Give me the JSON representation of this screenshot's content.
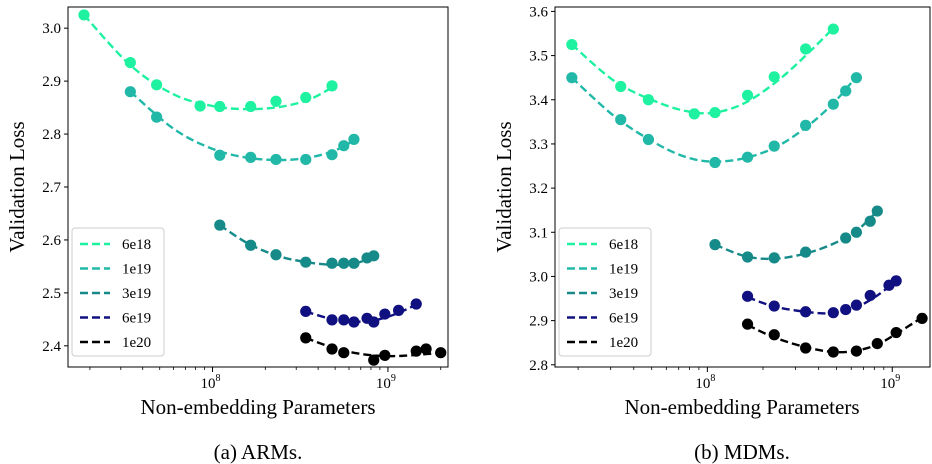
{
  "chart_data": [
    {
      "type": "scatter",
      "caption": "(a) ARMs.",
      "xlabel": "Non-embedding Parameters",
      "ylabel": "Validation Loss",
      "xscale": "log",
      "xlim": [
        15000000.0,
        2200000000.0
      ],
      "ylim": [
        2.36,
        3.04
      ],
      "yticks": [
        "2.4",
        "2.5",
        "2.6",
        "2.7",
        "2.8",
        "2.9",
        "3.0"
      ],
      "xticks": [
        {
          "base": "10",
          "exp": "8"
        },
        {
          "base": "10",
          "exp": "9"
        }
      ],
      "grid": false,
      "legend_position": "lower-left",
      "series": [
        {
          "name": "6e18",
          "color": "#1ef2a0",
          "points": [
            [
              18500000.0,
              3.025
            ],
            [
              34000000.0,
              2.935
            ],
            [
              48000000.0,
              2.893
            ],
            [
              85000000.0,
              2.853
            ],
            [
              110000000.0,
              2.852
            ],
            [
              165000000.0,
              2.852
            ],
            [
              230000000.0,
              2.862
            ],
            [
              340000000.0,
              2.869
            ],
            [
              480000000.0,
              2.891
            ]
          ],
          "fit": [
            [
              18500000.0,
              3.025
            ],
            [
              34000000.0,
              2.93
            ],
            [
              60000000.0,
              2.875
            ],
            [
              100000000.0,
              2.853
            ],
            [
              160000000.0,
              2.847
            ],
            [
              250000000.0,
              2.852
            ],
            [
              360000000.0,
              2.866
            ],
            [
              480000000.0,
              2.888
            ]
          ]
        },
        {
          "name": "1e19",
          "color": "#22b8a8",
          "points": [
            [
              34000000.0,
              2.88
            ],
            [
              48000000.0,
              2.832
            ],
            [
              110000000.0,
              2.76
            ],
            [
              165000000.0,
              2.756
            ],
            [
              230000000.0,
              2.752
            ],
            [
              340000000.0,
              2.752
            ],
            [
              480000000.0,
              2.761
            ],
            [
              560000000.0,
              2.778
            ],
            [
              640000000.0,
              2.79
            ]
          ],
          "fit": [
            [
              34000000.0,
              2.88
            ],
            [
              60000000.0,
              2.81
            ],
            [
              100000000.0,
              2.772
            ],
            [
              160000000.0,
              2.755
            ],
            [
              250000000.0,
              2.751
            ],
            [
              360000000.0,
              2.756
            ],
            [
              500000000.0,
              2.769
            ],
            [
              640000000.0,
              2.788
            ]
          ]
        },
        {
          "name": "3e19",
          "color": "#168a88",
          "points": [
            [
              110000000.0,
              2.628
            ],
            [
              165000000.0,
              2.59
            ],
            [
              230000000.0,
              2.572
            ],
            [
              340000000.0,
              2.558
            ],
            [
              480000000.0,
              2.556
            ],
            [
              560000000.0,
              2.556
            ],
            [
              640000000.0,
              2.556
            ],
            [
              760000000.0,
              2.566
            ],
            [
              830000000.0,
              2.57
            ]
          ],
          "fit": [
            [
              110000000.0,
              2.628
            ],
            [
              160000000.0,
              2.593
            ],
            [
              240000000.0,
              2.569
            ],
            [
              360000000.0,
              2.557
            ],
            [
              500000000.0,
              2.553
            ],
            [
              650000000.0,
              2.556
            ],
            [
              830000000.0,
              2.567
            ]
          ]
        },
        {
          "name": "6e19",
          "color": "#101080",
          "points": [
            [
              340000000.0,
              2.465
            ],
            [
              480000000.0,
              2.449
            ],
            [
              560000000.0,
              2.449
            ],
            [
              640000000.0,
              2.445
            ],
            [
              760000000.0,
              2.452
            ],
            [
              830000000.0,
              2.445
            ],
            [
              960000000.0,
              2.46
            ],
            [
              1150000000.0,
              2.467
            ],
            [
              1450000000.0,
              2.479
            ]
          ],
          "fit": [
            [
              340000000.0,
              2.465
            ],
            [
              460000000.0,
              2.452
            ],
            [
              620000000.0,
              2.446
            ],
            [
              800000000.0,
              2.447
            ],
            [
              1000000000.0,
              2.455
            ],
            [
              1200000000.0,
              2.465
            ],
            [
              1450000000.0,
              2.478
            ]
          ]
        },
        {
          "name": "1e20",
          "color": "#000000",
          "points": [
            [
              340000000.0,
              2.415
            ],
            [
              480000000.0,
              2.394
            ],
            [
              560000000.0,
              2.387
            ],
            [
              830000000.0,
              2.373
            ],
            [
              960000000.0,
              2.382
            ],
            [
              1450000000.0,
              2.39
            ],
            [
              1650000000.0,
              2.394
            ],
            [
              2000000000.0,
              2.387
            ]
          ],
          "fit": [
            [
              340000000.0,
              2.415
            ],
            [
              480000000.0,
              2.397
            ],
            [
              660000000.0,
              2.386
            ],
            [
              900000000.0,
              2.381
            ],
            [
              1200000000.0,
              2.381
            ],
            [
              1600000000.0,
              2.384
            ],
            [
              2000000000.0,
              2.387
            ]
          ]
        }
      ]
    },
    {
      "type": "scatter",
      "caption": "(b) MDMs.",
      "xlabel": "Non-embedding Parameters",
      "ylabel": "Validation Loss",
      "xscale": "log",
      "xlim": [
        15000000.0,
        1600000000.0
      ],
      "ylim": [
        2.795,
        3.61
      ],
      "yticks": [
        "2.8",
        "2.9",
        "3.0",
        "3.1",
        "3.2",
        "3.3",
        "3.4",
        "3.5",
        "3.6"
      ],
      "xticks": [
        {
          "base": "10",
          "exp": "8"
        },
        {
          "base": "10",
          "exp": "9"
        }
      ],
      "grid": false,
      "legend_position": "lower-left",
      "series": [
        {
          "name": "6e18",
          "color": "#1ef2a0",
          "points": [
            [
              18500000.0,
              3.525
            ],
            [
              34000000.0,
              3.43
            ],
            [
              48000000.0,
              3.4
            ],
            [
              85000000.0,
              3.368
            ],
            [
              110000000.0,
              3.371
            ],
            [
              165000000.0,
              3.41
            ],
            [
              230000000.0,
              3.452
            ],
            [
              340000000.0,
              3.515
            ],
            [
              480000000.0,
              3.56
            ]
          ],
          "fit": [
            [
              18500000.0,
              3.525
            ],
            [
              32000000.0,
              3.44
            ],
            [
              55000000.0,
              3.393
            ],
            [
              80000000.0,
              3.373
            ],
            [
              110000000.0,
              3.371
            ],
            [
              160000000.0,
              3.393
            ],
            [
              240000000.0,
              3.443
            ],
            [
              340000000.0,
              3.5
            ],
            [
              480000000.0,
              3.562
            ]
          ]
        },
        {
          "name": "1e19",
          "color": "#22b8a8",
          "points": [
            [
              18500000.0,
              3.45
            ],
            [
              34000000.0,
              3.355
            ],
            [
              48000000.0,
              3.31
            ],
            [
              110000000.0,
              3.258
            ],
            [
              165000000.0,
              3.27
            ],
            [
              230000000.0,
              3.295
            ],
            [
              340000000.0,
              3.342
            ],
            [
              480000000.0,
              3.39
            ],
            [
              560000000.0,
              3.42
            ],
            [
              640000000.0,
              3.45
            ]
          ],
          "fit": [
            [
              18500000.0,
              3.45
            ],
            [
              32000000.0,
              3.36
            ],
            [
              55000000.0,
              3.297
            ],
            [
              80000000.0,
              3.268
            ],
            [
              110000000.0,
              3.26
            ],
            [
              160000000.0,
              3.268
            ],
            [
              240000000.0,
              3.295
            ],
            [
              360000000.0,
              3.345
            ],
            [
              500000000.0,
              3.4
            ],
            [
              640000000.0,
              3.453
            ]
          ]
        },
        {
          "name": "3e19",
          "color": "#168a88",
          "points": [
            [
              110000000.0,
              3.072
            ],
            [
              165000000.0,
              3.044
            ],
            [
              230000000.0,
              3.042
            ],
            [
              340000000.0,
              3.055
            ],
            [
              560000000.0,
              3.087
            ],
            [
              640000000.0,
              3.1
            ],
            [
              760000000.0,
              3.125
            ],
            [
              830000000.0,
              3.148
            ]
          ],
          "fit": [
            [
              110000000.0,
              3.072
            ],
            [
              160000000.0,
              3.046
            ],
            [
              230000000.0,
              3.04
            ],
            [
              340000000.0,
              3.052
            ],
            [
              480000000.0,
              3.074
            ],
            [
              640000000.0,
              3.103
            ],
            [
              830000000.0,
              3.148
            ]
          ]
        },
        {
          "name": "6e19",
          "color": "#101080",
          "points": [
            [
              165000000.0,
              2.955
            ],
            [
              230000000.0,
              2.933
            ],
            [
              340000000.0,
              2.92
            ],
            [
              480000000.0,
              2.918
            ],
            [
              560000000.0,
              2.925
            ],
            [
              640000000.0,
              2.935
            ],
            [
              760000000.0,
              2.957
            ],
            [
              960000000.0,
              2.98
            ],
            [
              1050000000.0,
              2.99
            ]
          ],
          "fit": [
            [
              165000000.0,
              2.953
            ],
            [
              230000000.0,
              2.932
            ],
            [
              340000000.0,
              2.92
            ],
            [
              480000000.0,
              2.917
            ],
            [
              650000000.0,
              2.932
            ],
            [
              830000000.0,
              2.957
            ],
            [
              1050000000.0,
              2.99
            ]
          ]
        },
        {
          "name": "1e20",
          "color": "#000000",
          "points": [
            [
              165000000.0,
              2.892
            ],
            [
              230000000.0,
              2.868
            ],
            [
              340000000.0,
              2.838
            ],
            [
              480000000.0,
              2.829
            ],
            [
              640000000.0,
              2.831
            ],
            [
              830000000.0,
              2.848
            ],
            [
              1050000000.0,
              2.873
            ],
            [
              1450000000.0,
              2.905
            ]
          ],
          "fit": [
            [
              165000000.0,
              2.89
            ],
            [
              230000000.0,
              2.862
            ],
            [
              340000000.0,
              2.84
            ],
            [
              480000000.0,
              2.829
            ],
            [
              640000000.0,
              2.832
            ],
            [
              830000000.0,
              2.846
            ],
            [
              1050000000.0,
              2.87
            ],
            [
              1450000000.0,
              2.907
            ]
          ]
        }
      ]
    }
  ]
}
